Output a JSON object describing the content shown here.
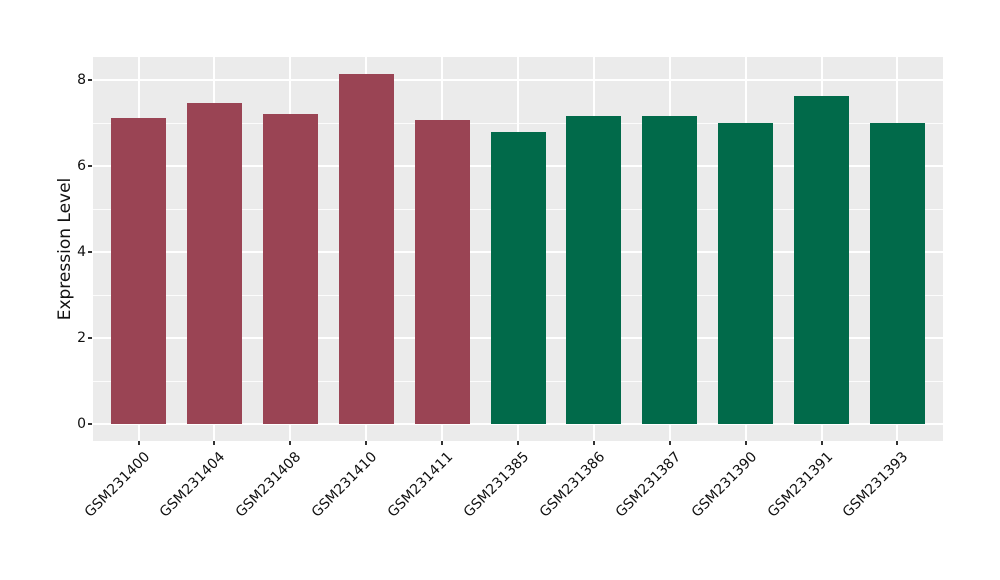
{
  "chart_data": {
    "type": "bar",
    "title": "",
    "xlabel": "",
    "ylabel": "Expression Level",
    "categories": [
      "GSM231400",
      "GSM231404",
      "GSM231408",
      "GSM231410",
      "GSM231411",
      "GSM231385",
      "GSM231386",
      "GSM231387",
      "GSM231390",
      "GSM231391",
      "GSM231393"
    ],
    "values": [
      7.11,
      7.45,
      7.2,
      8.12,
      7.07,
      6.77,
      7.15,
      7.15,
      6.99,
      7.62,
      6.99
    ],
    "bar_colors": [
      "#9A4454",
      "#9A4454",
      "#9A4454",
      "#9A4454",
      "#9A4454",
      "#016A4A",
      "#016A4A",
      "#016A4A",
      "#016A4A",
      "#016A4A",
      "#016A4A"
    ],
    "series": [
      {
        "name": "group-red",
        "color": "#9A4454",
        "categories": [
          "GSM231400",
          "GSM231404",
          "GSM231408",
          "GSM231410",
          "GSM231411"
        ]
      },
      {
        "name": "group-green",
        "color": "#016A4A",
        "categories": [
          "GSM231385",
          "GSM231386",
          "GSM231387",
          "GSM231390",
          "GSM231391",
          "GSM231393"
        ]
      }
    ],
    "yticks": [
      0,
      2,
      4,
      6,
      8
    ],
    "ylim": [
      0,
      8.53
    ],
    "grid": true,
    "legend": false,
    "panel_background": "#EBEBEB",
    "grid_color": "#FFFFFF",
    "tick_color": "#333333",
    "text_color": "#111111",
    "figure_background": "#FFFFFF"
  }
}
